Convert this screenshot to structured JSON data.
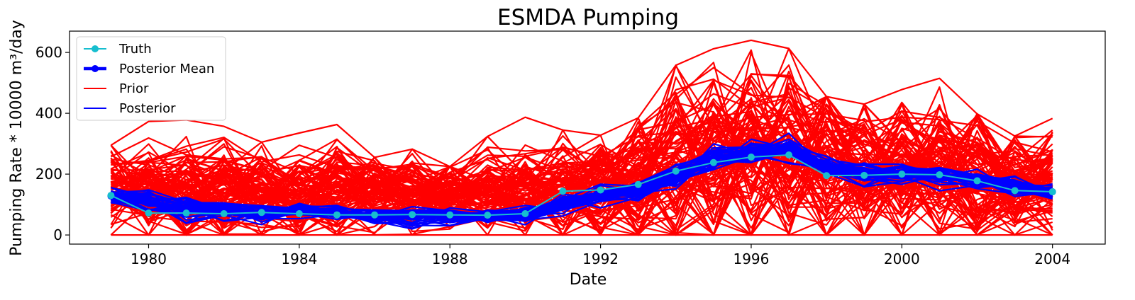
{
  "chart_data": {
    "type": "line",
    "title": "ESMDA Pumping",
    "xlabel": "Date",
    "ylabel": "Pumping Rate * 10000 m³/day",
    "xlim": [
      1977.9,
      2005.4
    ],
    "ylim": [
      -30,
      670
    ],
    "x_ticks": [
      1980,
      1984,
      1988,
      1992,
      1996,
      2000,
      2004
    ],
    "y_ticks": [
      0,
      200,
      400,
      600
    ],
    "grid": false,
    "legend_position": "top-left",
    "x": [
      1979,
      1980,
      1981,
      1982,
      1983,
      1984,
      1985,
      1986,
      1987,
      1988,
      1989,
      1990,
      1991,
      1992,
      1993,
      1994,
      1995,
      1996,
      1997,
      1998,
      1999,
      2000,
      2001,
      2002,
      2003,
      2004
    ],
    "series": [
      {
        "name": "Truth",
        "color": "#17becf",
        "marker": "circle",
        "values": [
          130,
          72,
          72,
          70,
          74,
          70,
          66,
          66,
          67,
          66,
          65,
          70,
          144,
          148,
          166,
          210,
          238,
          256,
          263,
          195,
          196,
          200,
          198,
          178,
          146,
          142
        ]
      },
      {
        "name": "Posterior Mean",
        "color": "#0000ff",
        "marker": "circle",
        "values": [
          128,
          108,
          86,
          82,
          72,
          77,
          75,
          66,
          59,
          62,
          61,
          67,
          102,
          125,
          145,
          190,
          248,
          270,
          281,
          221,
          200,
          200,
          193,
          182,
          158,
          142
        ]
      },
      {
        "name": "Prior",
        "color": "#ff0000",
        "line_only": true,
        "mean": [
          142,
          140,
          138,
          141,
          140,
          142,
          140,
          136,
          135,
          138,
          141,
          142,
          150,
          160,
          180,
          225,
          245,
          265,
          260,
          225,
          205,
          205,
          205,
          195,
          170,
          160
        ],
        "spread": [
          68,
          68,
          68,
          68,
          68,
          68,
          66,
          62,
          62,
          64,
          68,
          68,
          75,
          88,
          110,
          135,
          150,
          160,
          158,
          135,
          118,
          118,
          118,
          110,
          90,
          80
        ],
        "max_values": [
          295,
          373,
          378,
          357,
          305,
          335,
          363,
          255,
          282,
          225,
          324,
          387,
          345,
          328,
          385,
          558,
          612,
          640,
          613,
          455,
          430,
          478,
          515,
          398,
          325,
          383
        ],
        "ensemble_size": 100
      },
      {
        "name": "Posterior",
        "color": "#0000ff",
        "line_only": true,
        "mean": [
          128,
          108,
          86,
          82,
          72,
          77,
          75,
          66,
          59,
          62,
          61,
          67,
          102,
          125,
          145,
          190,
          248,
          270,
          281,
          221,
          200,
          200,
          193,
          182,
          158,
          142
        ],
        "spread": [
          14,
          22,
          20,
          16,
          14,
          14,
          14,
          14,
          18,
          16,
          12,
          16,
          18,
          16,
          18,
          18,
          20,
          20,
          20,
          20,
          18,
          18,
          16,
          14,
          14,
          12
        ],
        "ensemble_size": 40
      }
    ]
  },
  "legend": {
    "entries": [
      {
        "label": "Truth",
        "color": "#17becf",
        "style": "line-marker"
      },
      {
        "label": "Posterior Mean",
        "color": "#0000ff",
        "style": "thick-line-marker"
      },
      {
        "label": "Prior",
        "color": "#ff0000",
        "style": "line"
      },
      {
        "label": "Posterior",
        "color": "#0000ff",
        "style": "line"
      }
    ]
  }
}
